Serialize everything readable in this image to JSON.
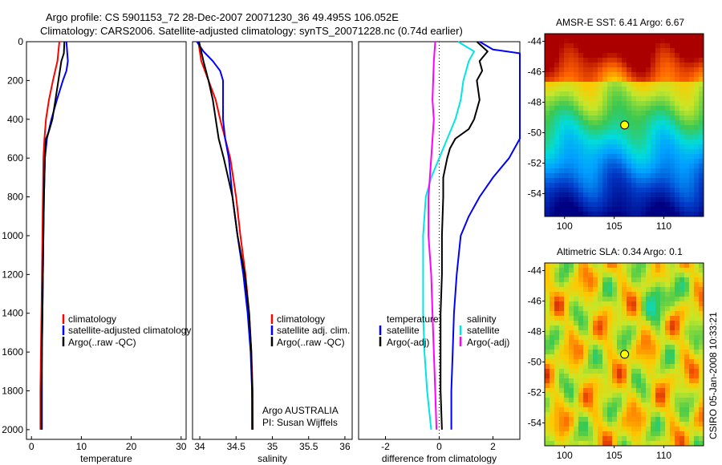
{
  "header": {
    "line1": "Argo profile: CS 5901153_72 28-Dec-2007 20071230_36 49.495S 106.052E",
    "line2": "Climatology: CARS2006. Satellite-adjusted climatology: synTS_20071228.nc (0.74d earlier)"
  },
  "side_note": "CSIRO 05-Jan-2008 10:33:21",
  "colors": {
    "climatology": "#ff0000",
    "satellite": "#0000ff",
    "argo": "#000000",
    "sal_satellite": "#00e6e6",
    "sal_argo": "#ff00ff",
    "marker": "#ffff00"
  },
  "chart_data": [
    {
      "id": "temperature",
      "type": "line",
      "xlabel": "temperature",
      "ylabel": "",
      "xlim": [
        -1,
        31
      ],
      "ylim": [
        2050,
        0
      ],
      "xticks": [
        "0",
        "10",
        "20",
        "30"
      ],
      "yticks": [
        "0",
        "200",
        "400",
        "600",
        "800",
        "1000",
        "1200",
        "1400",
        "1600",
        "1800",
        "2000"
      ],
      "legend": {
        "placement": "lower-right",
        "entries": [
          "climatology",
          "satellite-adjusted climatology",
          "Argo(..raw -QC)"
        ]
      },
      "series": [
        {
          "name": "climatology",
          "color": "#ff0000",
          "points": [
            [
              5.6,
              0
            ],
            [
              5.2,
              100
            ],
            [
              4.3,
              200
            ],
            [
              3.5,
              300
            ],
            [
              2.9,
              400
            ],
            [
              2.6,
              500
            ],
            [
              2.4,
              600
            ],
            [
              2.3,
              800
            ],
            [
              2.2,
              1000
            ],
            [
              2.1,
              1200
            ],
            [
              2.0,
              1400
            ],
            [
              1.9,
              1600
            ],
            [
              1.8,
              1800
            ],
            [
              1.8,
              2000
            ]
          ]
        },
        {
          "name": "satellite-adjusted climatology",
          "color": "#0000ff",
          "points": [
            [
              7.0,
              0
            ],
            [
              7.3,
              100
            ],
            [
              7.0,
              150
            ],
            [
              6.3,
              200
            ],
            [
              5.1,
              300
            ],
            [
              4.0,
              400
            ],
            [
              3.1,
              500
            ],
            [
              2.7,
              600
            ],
            [
              2.5,
              800
            ],
            [
              2.4,
              1000
            ],
            [
              2.3,
              1200
            ],
            [
              2.2,
              1400
            ],
            [
              2.1,
              1600
            ],
            [
              2.1,
              1800
            ],
            [
              2.1,
              2000
            ]
          ]
        },
        {
          "name": "Argo(..raw -QC)",
          "color": "#000000",
          "points": [
            [
              6.6,
              0
            ],
            [
              6.5,
              60
            ],
            [
              6.0,
              100
            ],
            [
              5.4,
              200
            ],
            [
              4.8,
              300
            ],
            [
              4.2,
              400
            ],
            [
              3.4,
              470
            ],
            [
              2.9,
              500
            ],
            [
              2.7,
              600
            ],
            [
              2.5,
              800
            ],
            [
              2.4,
              1000
            ],
            [
              2.3,
              1200
            ],
            [
              2.2,
              1400
            ],
            [
              2.1,
              1600
            ],
            [
              2.0,
              1800
            ],
            [
              2.0,
              2000
            ]
          ]
        }
      ]
    },
    {
      "id": "salinity",
      "type": "line",
      "xlabel": "salinity",
      "ylabel": "",
      "xlim": [
        33.9,
        36.1
      ],
      "ylim": [
        2050,
        0
      ],
      "xticks": [
        "34",
        "34.5",
        "35",
        "35.5",
        "36"
      ],
      "yticks": [],
      "legend": {
        "placement": "lower-right",
        "entries": [
          "climatology",
          "satellite adj. clim.",
          "Argo(..raw -QC)"
        ]
      },
      "annotations": [
        "Argo AUSTRALIA",
        "PI: Susan Wijffels"
      ],
      "series": [
        {
          "name": "climatology",
          "color": "#ff0000",
          "points": [
            [
              33.98,
              0
            ],
            [
              34.02,
              100
            ],
            [
              34.12,
              200
            ],
            [
              34.22,
              300
            ],
            [
              34.28,
              400
            ],
            [
              34.35,
              500
            ],
            [
              34.42,
              600
            ],
            [
              34.5,
              800
            ],
            [
              34.56,
              1000
            ],
            [
              34.63,
              1200
            ],
            [
              34.68,
              1400
            ],
            [
              34.71,
              1600
            ],
            [
              34.73,
              1800
            ],
            [
              34.73,
              2000
            ]
          ]
        },
        {
          "name": "satellite adj. clim.",
          "color": "#0000ff",
          "points": [
            [
              33.96,
              0
            ],
            [
              34.05,
              50
            ],
            [
              34.18,
              100
            ],
            [
              34.28,
              150
            ],
            [
              34.32,
              200
            ],
            [
              34.32,
              300
            ],
            [
              34.32,
              400
            ],
            [
              34.35,
              500
            ],
            [
              34.4,
              600
            ],
            [
              34.45,
              800
            ],
            [
              34.52,
              1000
            ],
            [
              34.6,
              1200
            ],
            [
              34.66,
              1400
            ],
            [
              34.7,
              1600
            ],
            [
              34.72,
              1800
            ],
            [
              34.73,
              2000
            ]
          ]
        },
        {
          "name": "Argo(..raw -QC)",
          "color": "#000000",
          "points": [
            [
              33.99,
              0
            ],
            [
              34.05,
              100
            ],
            [
              34.12,
              200
            ],
            [
              34.18,
              300
            ],
            [
              34.22,
              400
            ],
            [
              34.26,
              500
            ],
            [
              34.33,
              600
            ],
            [
              34.45,
              800
            ],
            [
              34.52,
              1000
            ],
            [
              34.62,
              1200
            ],
            [
              34.68,
              1400
            ],
            [
              34.71,
              1600
            ],
            [
              34.72,
              1800
            ],
            [
              34.72,
              2000
            ]
          ]
        }
      ]
    },
    {
      "id": "difference",
      "type": "line",
      "xlabel": "difference from climatology",
      "ylabel": "",
      "xlim": [
        -3,
        3
      ],
      "ylim": [
        2050,
        0
      ],
      "xticks": [
        "-2",
        "0",
        "2"
      ],
      "yticks": [],
      "legend": {
        "placement": "lower-center",
        "groups": [
          {
            "title": "temperature",
            "entries": [
              "satellite",
              "Argo(-adj)"
            ]
          },
          {
            "title": "salinity",
            "entries": [
              "satellite",
              "Argo(-adj)"
            ]
          }
        ]
      },
      "series": [
        {
          "name": "satellite",
          "group": "temperature",
          "color": "#0000ff",
          "points": [
            [
              1.5,
              0
            ],
            [
              2.0,
              40
            ],
            [
              3.0,
              60
            ],
            [
              3.0,
              500
            ],
            [
              2.6,
              600
            ],
            [
              2.0,
              700
            ],
            [
              1.5,
              800
            ],
            [
              1.1,
              900
            ],
            [
              0.8,
              1000
            ],
            [
              0.65,
              1200
            ],
            [
              0.55,
              1400
            ],
            [
              0.5,
              1600
            ],
            [
              0.45,
              1800
            ],
            [
              0.45,
              2000
            ]
          ]
        },
        {
          "name": "Argo(-adj)",
          "group": "temperature",
          "color": "#000000",
          "points": [
            [
              1.4,
              0
            ],
            [
              1.8,
              50
            ],
            [
              1.5,
              100
            ],
            [
              1.6,
              150
            ],
            [
              1.4,
              200
            ],
            [
              1.5,
              300
            ],
            [
              1.3,
              400
            ],
            [
              1.1,
              450
            ],
            [
              0.6,
              500
            ],
            [
              0.4,
              550
            ],
            [
              0.3,
              600
            ],
            [
              0.15,
              700
            ],
            [
              0.15,
              800
            ],
            [
              0.1,
              1000
            ],
            [
              0.1,
              1200
            ],
            [
              0.05,
              1400
            ],
            [
              0.05,
              1600
            ],
            [
              0.05,
              1800
            ],
            [
              0.1,
              2000
            ]
          ]
        },
        {
          "name": "satellite",
          "group": "salinity",
          "color": "#00e6e6",
          "points": [
            [
              0.7,
              0
            ],
            [
              1.3,
              50
            ],
            [
              1.1,
              100
            ],
            [
              0.9,
              200
            ],
            [
              0.8,
              300
            ],
            [
              0.6,
              400
            ],
            [
              0.3,
              500
            ],
            [
              0.0,
              600
            ],
            [
              -0.3,
              700
            ],
            [
              -0.5,
              800
            ],
            [
              -0.6,
              1000
            ],
            [
              -0.6,
              1200
            ],
            [
              -0.6,
              1400
            ],
            [
              -0.55,
              1600
            ],
            [
              -0.45,
              1800
            ],
            [
              -0.3,
              2000
            ]
          ]
        },
        {
          "name": "Argo(-adj)",
          "group": "salinity",
          "color": "#ff00ff",
          "points": [
            [
              -0.15,
              0
            ],
            [
              -0.2,
              100
            ],
            [
              -0.25,
              300
            ],
            [
              -0.2,
              400
            ],
            [
              -0.3,
              600
            ],
            [
              -0.4,
              800
            ],
            [
              -0.4,
              1000
            ],
            [
              -0.3,
              1200
            ],
            [
              -0.25,
              1400
            ],
            [
              -0.2,
              1600
            ],
            [
              -0.15,
              1800
            ],
            [
              -0.1,
              2000
            ]
          ]
        }
      ]
    },
    {
      "id": "sst-map",
      "type": "heatmap",
      "title": "AMSR-E SST: 6.41 Argo: 6.67",
      "xlim": [
        98,
        114
      ],
      "ylim": [
        -55.5,
        -43.5
      ],
      "xticks": [
        "100",
        "105",
        "110"
      ],
      "yticks": [
        "-44",
        "-46",
        "-48",
        "-50",
        "-52",
        "-54"
      ],
      "marker": {
        "lon": 106.052,
        "lat": -49.495
      }
    },
    {
      "id": "sla-map",
      "type": "heatmap",
      "title": "Altimetric SLA: 0.34 Argo: 0.1",
      "xlim": [
        98,
        114
      ],
      "ylim": [
        -55.5,
        -43.5
      ],
      "xticks": [
        "100",
        "105",
        "110"
      ],
      "yticks": [
        "-44",
        "-46",
        "-48",
        "-50",
        "-52",
        "-54"
      ],
      "marker": {
        "lon": 106.052,
        "lat": -49.495
      }
    }
  ]
}
